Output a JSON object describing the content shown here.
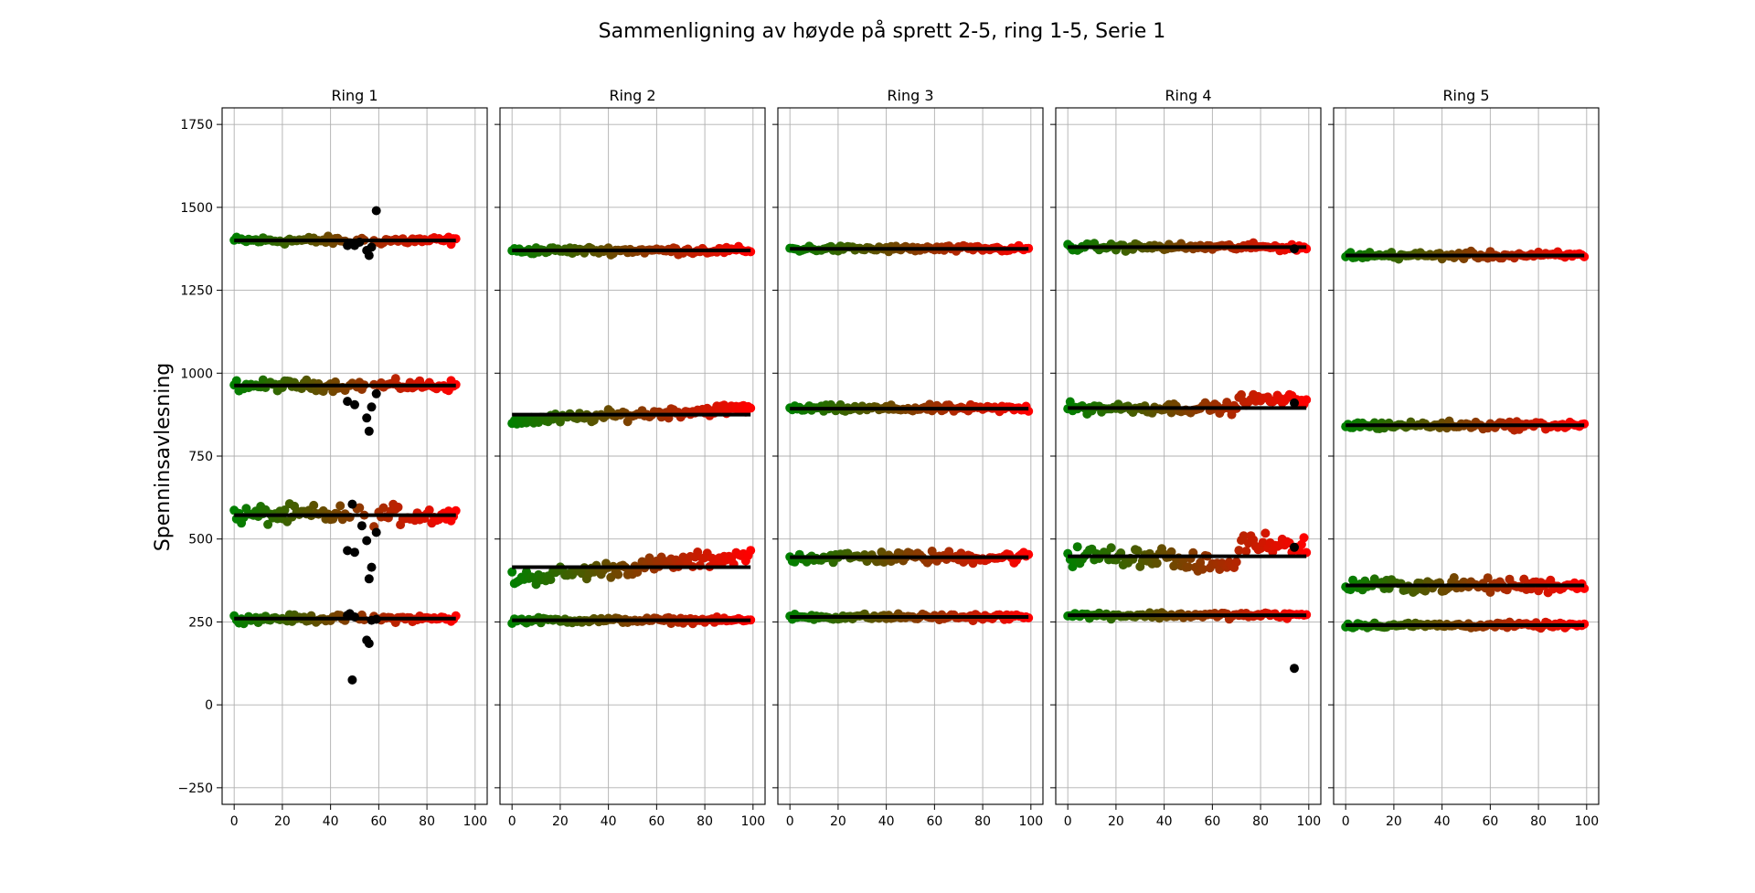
{
  "chart_data": {
    "type": "scatter",
    "title": "Sammenligning av høyde på sprett 2-5, ring 1-5, Serie 1",
    "ylabel": "Spenninsavlesning",
    "xlim": [
      -5,
      105
    ],
    "ylim": [
      -300,
      1800
    ],
    "x_ticks": [
      "0",
      "20",
      "40",
      "60",
      "80",
      "100"
    ],
    "x_tick_values": [
      0,
      20,
      40,
      60,
      80,
      100
    ],
    "y_ticks": [
      "−250",
      "0",
      "250",
      "500",
      "750",
      "1000",
      "1250",
      "1500",
      "1750"
    ],
    "y_tick_values": [
      -250,
      0,
      250,
      500,
      750,
      1000,
      1250,
      1500,
      1750
    ],
    "grid": true,
    "color_start": "#008000",
    "color_end": "#ff0000",
    "outlier_color": "#000000",
    "mean_line_color": "#000000",
    "panels": [
      {
        "title": "Ring 1",
        "levels": [
          {
            "mean": 1400,
            "x_end": 92,
            "noise": 9,
            "outliers": [
              [
                47,
                1385
              ],
              [
                49,
                1390
              ],
              [
                50,
                1385
              ],
              [
                52,
                1395
              ],
              [
                55,
                1370
              ],
              [
                56,
                1355
              ],
              [
                57,
                1380
              ],
              [
                59,
                1490
              ]
            ]
          },
          {
            "mean": 963,
            "x_end": 92,
            "noise": 12,
            "outliers": [
              [
                47,
                915
              ],
              [
                50,
                905
              ],
              [
                55,
                865
              ],
              [
                56,
                825
              ],
              [
                57,
                898
              ],
              [
                59,
                938
              ]
            ]
          },
          {
            "mean": 572,
            "x_end": 92,
            "noise": 22,
            "outliers": [
              [
                47,
                465
              ],
              [
                49,
                605
              ],
              [
                50,
                460
              ],
              [
                53,
                540
              ],
              [
                55,
                495
              ],
              [
                56,
                380
              ],
              [
                57,
                415
              ],
              [
                59,
                520
              ]
            ]
          },
          {
            "mean": 260,
            "x_end": 92,
            "noise": 8,
            "outliers": [
              [
                47,
                270
              ],
              [
                48,
                275
              ],
              [
                49,
                75
              ],
              [
                50,
                265
              ],
              [
                55,
                195
              ],
              [
                56,
                185
              ],
              [
                57,
                255
              ],
              [
                59,
                258
              ]
            ]
          }
        ]
      },
      {
        "title": "Ring 2",
        "levels": [
          {
            "mean": 1370,
            "x_end": 99,
            "noise": 8,
            "outliers": []
          },
          {
            "mean": 875,
            "x_end": 99,
            "noise": 12,
            "outliers": []
          },
          {
            "mean": 415,
            "x_end": 99,
            "noise": 18,
            "outliers": []
          },
          {
            "mean": 255,
            "x_end": 99,
            "noise": 6,
            "outliers": []
          }
        ]
      },
      {
        "title": "Ring 3",
        "levels": [
          {
            "mean": 1375,
            "x_end": 99,
            "noise": 7,
            "outliers": []
          },
          {
            "mean": 893,
            "x_end": 99,
            "noise": 8,
            "outliers": []
          },
          {
            "mean": 445,
            "x_end": 99,
            "noise": 14,
            "outliers": []
          },
          {
            "mean": 265,
            "x_end": 99,
            "noise": 7,
            "outliers": []
          }
        ]
      },
      {
        "title": "Ring 4",
        "levels": [
          {
            "mean": 1380,
            "x_end": 99,
            "noise": 8,
            "outliers": [
              [
                94,
                1375
              ]
            ]
          },
          {
            "mean": 895,
            "x_end": 99,
            "noise": 12,
            "outliers": [
              [
                94,
                910
              ]
            ]
          },
          {
            "mean": 448,
            "x_end": 99,
            "noise": 22,
            "outliers": [
              [
                94,
                475
              ]
            ]
          },
          {
            "mean": 270,
            "x_end": 99,
            "noise": 7,
            "outliers": [
              [
                94,
                110
              ]
            ]
          }
        ]
      },
      {
        "title": "Ring 5",
        "levels": [
          {
            "mean": 1355,
            "x_end": 99,
            "noise": 8,
            "outliers": []
          },
          {
            "mean": 843,
            "x_end": 99,
            "noise": 9,
            "outliers": []
          },
          {
            "mean": 360,
            "x_end": 99,
            "noise": 16,
            "outliers": []
          },
          {
            "mean": 240,
            "x_end": 99,
            "noise": 6,
            "outliers": []
          }
        ]
      }
    ]
  }
}
